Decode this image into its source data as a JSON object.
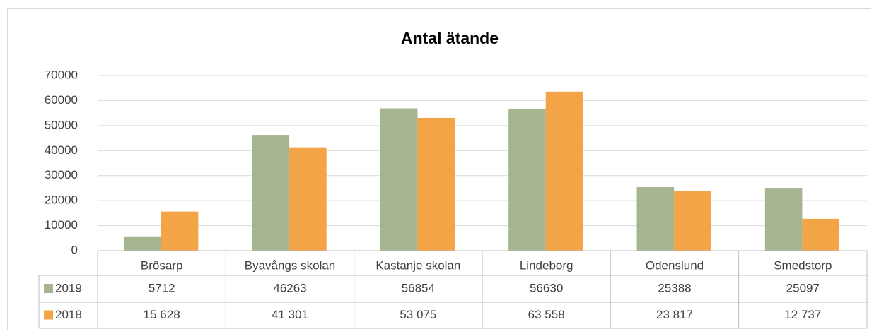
{
  "chart_data": {
    "type": "bar",
    "title": "Antal ätande",
    "categories": [
      "Brösarp",
      "Byavångs skolan",
      "Kastanje skolan",
      "Lindeborg",
      "Odenslund",
      "Smedstorp"
    ],
    "series": [
      {
        "name": "2019",
        "color": "#a5b592",
        "values": [
          5712,
          46263,
          56854,
          56630,
          25388,
          25097
        ]
      },
      {
        "name": "2018",
        "color": "#f3a447",
        "values": [
          15628,
          41301,
          53075,
          63558,
          23817,
          12737
        ],
        "value_labels": [
          "15 628",
          "41 301",
          "53 075",
          "63 558",
          "23 817",
          "12 737"
        ]
      }
    ],
    "ylim": [
      0,
      70000
    ],
    "yticks": [
      0,
      10000,
      20000,
      30000,
      40000,
      50000,
      60000,
      70000
    ],
    "grid": true
  }
}
